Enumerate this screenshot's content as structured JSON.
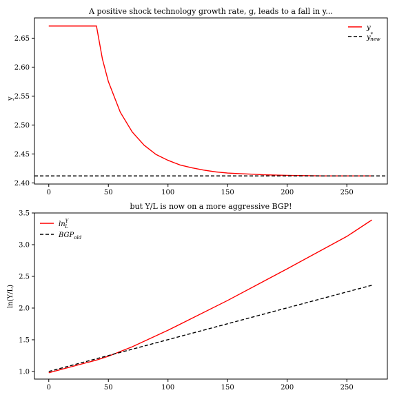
{
  "chart_data": [
    {
      "type": "line",
      "title": "A positive shock technology growth rate, g, leads to a fall in y...",
      "xlabel": "",
      "ylabel": "y",
      "xlim": [
        -12,
        284
      ],
      "ylim": [
        2.398,
        2.685
      ],
      "xticks": [
        "0",
        "50",
        "100",
        "150",
        "200",
        "250"
      ],
      "yticks": [
        "2.40",
        "2.45",
        "2.50",
        "2.55",
        "2.60",
        "2.65"
      ],
      "grid": false,
      "legend_position": "top-right",
      "shock_period": 40,
      "series": [
        {
          "name": "y",
          "color": "#ff0000",
          "style": "solid",
          "points": [
            [
              0,
              2.671
            ],
            [
              40,
              2.671
            ],
            [
              45,
              2.614
            ],
            [
              50,
              2.575
            ],
            [
              60,
              2.522
            ],
            [
              70,
              2.488
            ],
            [
              80,
              2.465
            ],
            [
              90,
              2.449
            ],
            [
              100,
              2.439
            ],
            [
              110,
              2.431
            ],
            [
              120,
              2.426
            ],
            [
              130,
              2.422
            ],
            [
              140,
              2.419
            ],
            [
              150,
              2.417
            ],
            [
              160,
              2.416
            ],
            [
              170,
              2.415
            ],
            [
              180,
              2.414
            ],
            [
              200,
              2.413
            ],
            [
              230,
              2.412
            ],
            [
              271,
              2.412
            ]
          ]
        },
        {
          "name": "y*new",
          "color": "#000000",
          "style": "dashed",
          "hline": 2.412
        }
      ]
    },
    {
      "type": "line",
      "title": "but Y/L is now on a more aggressive BGP!",
      "xlabel": "",
      "ylabel": "ln(Y/L)",
      "xlim": [
        -12,
        284
      ],
      "ylim": [
        0.88,
        3.5
      ],
      "xticks": [
        "0",
        "50",
        "100",
        "150",
        "200",
        "250"
      ],
      "yticks": [
        "1.0",
        "1.5",
        "2.0",
        "2.5",
        "3.0",
        "3.5"
      ],
      "grid": false,
      "legend_position": "top-left",
      "series": [
        {
          "name": "lnY/L",
          "color": "#ff0000",
          "style": "solid",
          "points": [
            [
              0,
              0.98
            ],
            [
              40,
              1.18
            ],
            [
              50,
              1.24
            ],
            [
              70,
              1.39
            ],
            [
              100,
              1.65
            ],
            [
              150,
              2.12
            ],
            [
              200,
              2.62
            ],
            [
              250,
              3.13
            ],
            [
              271,
              3.39
            ]
          ]
        },
        {
          "name": "BGPold",
          "color": "#000000",
          "style": "dashed",
          "points": [
            [
              0,
              1.0
            ],
            [
              271,
              2.36
            ]
          ]
        }
      ]
    }
  ]
}
